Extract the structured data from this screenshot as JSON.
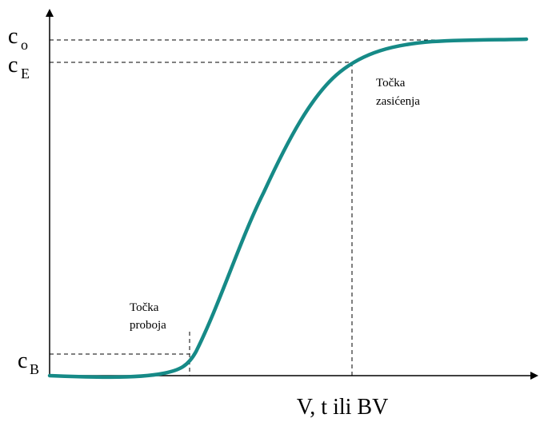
{
  "axes": {
    "x_label": "V, t ili BV"
  },
  "levels": [
    {
      "symbol": "c",
      "subscript": "o"
    },
    {
      "symbol": "c",
      "subscript": "E"
    },
    {
      "symbol": "c",
      "subscript": "B"
    }
  ],
  "annotations": [
    {
      "lines": [
        "Točka",
        "proboja"
      ]
    },
    {
      "lines": [
        "Točka",
        "zasićenja"
      ]
    }
  ]
}
